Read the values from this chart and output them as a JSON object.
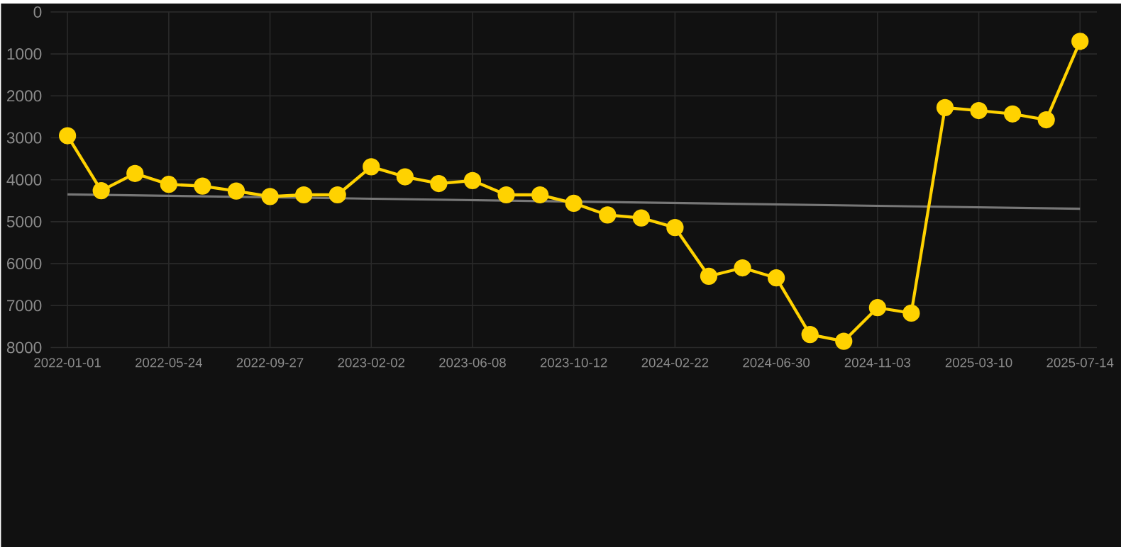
{
  "chart_data": {
    "type": "line",
    "categories": [
      "2022-01-01",
      null,
      null,
      "2022-05-24",
      null,
      null,
      "2022-09-27",
      null,
      null,
      "2023-02-02",
      null,
      null,
      "2023-06-08",
      null,
      null,
      "2023-10-12",
      null,
      null,
      "2024-02-22",
      null,
      null,
      "2024-06-30",
      null,
      null,
      "2024-11-03",
      null,
      null,
      "2025-03-10",
      null,
      null,
      "2025-07-14"
    ],
    "ylim": [
      8000,
      0
    ],
    "yticks": [
      0,
      1000,
      2000,
      3000,
      4000,
      5000,
      6000,
      7000,
      8000
    ],
    "grid": true,
    "marker": "circle",
    "series": [
      {
        "color": "#ffd200",
        "values": [
          2950,
          4260,
          3850,
          4110,
          4150,
          4270,
          4400,
          4360,
          4360,
          3690,
          3930,
          4090,
          4020,
          4360,
          4360,
          4560,
          4840,
          4910,
          5140,
          6300,
          6100,
          6340,
          7690,
          7850,
          7050,
          7180,
          2280,
          2350,
          2430,
          2570,
          700
        ]
      },
      {
        "type": "line",
        "marker": "none",
        "color": "#777777",
        "values": [
          4350,
          null,
          null,
          null,
          null,
          null,
          null,
          null,
          null,
          null,
          null,
          null,
          null,
          null,
          null,
          null,
          null,
          null,
          null,
          null,
          null,
          null,
          null,
          null,
          null,
          null,
          null,
          null,
          null,
          null,
          4690
        ]
      }
    ]
  }
}
